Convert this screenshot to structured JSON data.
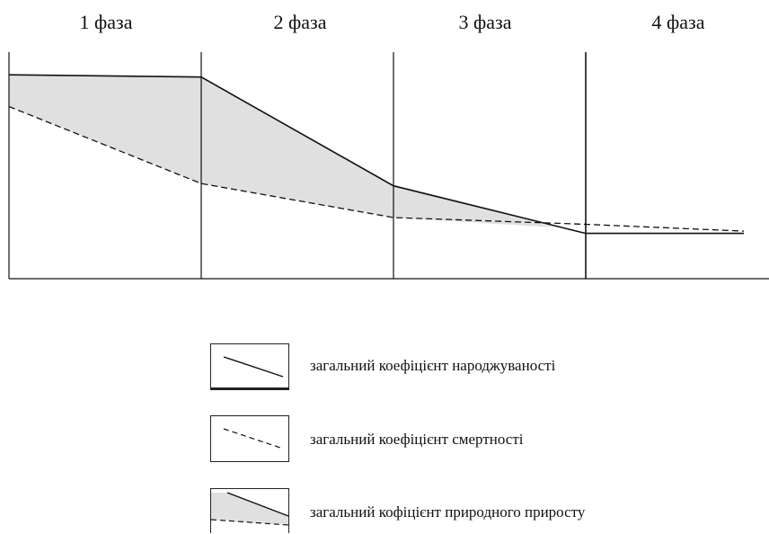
{
  "phases": [
    "1 фаза",
    "2 фаза",
    "3 фаза",
    "4 фаза"
  ],
  "legend": {
    "birth": "загальний коефіцієнт народжуваності",
    "death": "загальний коефіцієнт смертності",
    "natural_increase": "загальний кофіцієнт природного приросту"
  },
  "colors": {
    "line": "#111111",
    "fill": "#e0e0e0"
  },
  "series": {
    "birth_rate": [
      0.9,
      0.89,
      0.41,
      0.2,
      0.2
    ],
    "death_rate": [
      0.76,
      0.42,
      0.27,
      0.24,
      0.21
    ]
  }
}
